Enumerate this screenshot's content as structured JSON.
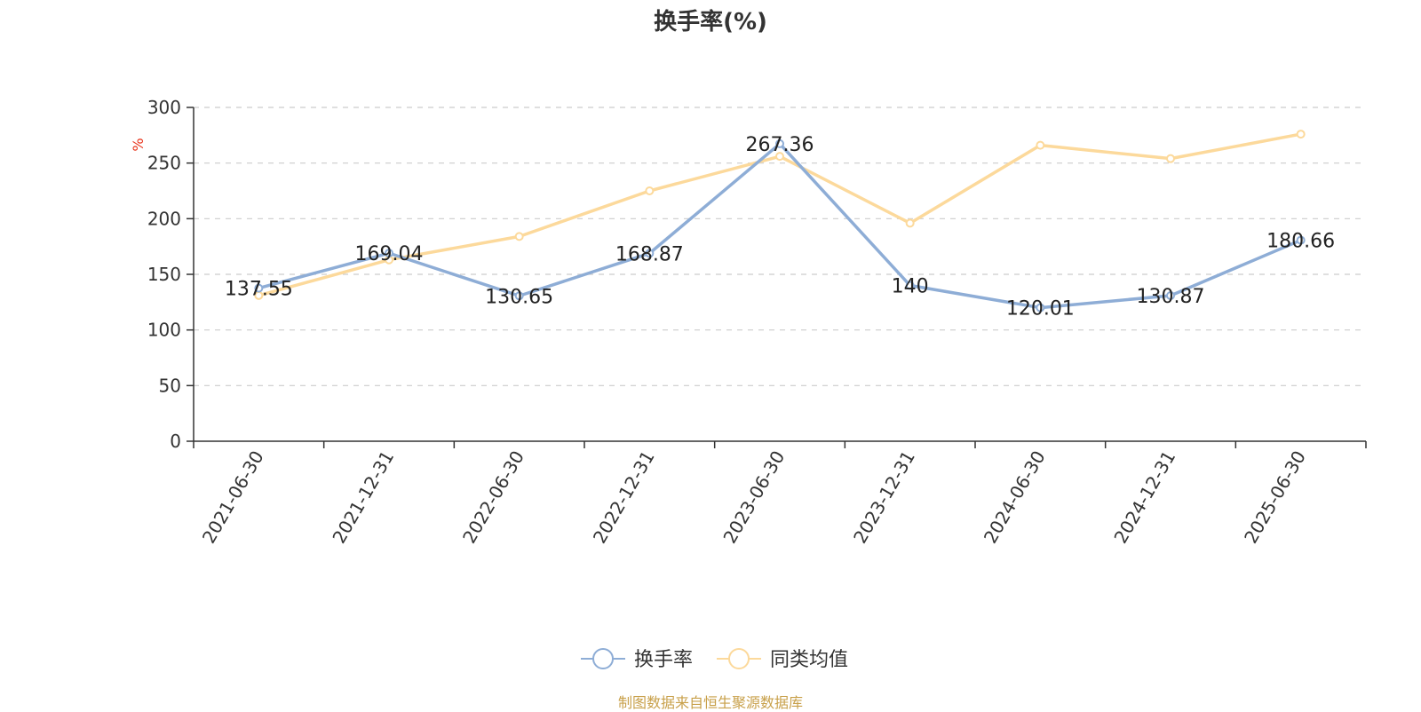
{
  "title": "换手率(%)",
  "source": "制图数据来自恒生聚源数据库",
  "chart_data": {
    "type": "line",
    "title": "换手率(%)",
    "ylabel": "%",
    "ylim": [
      0,
      300
    ],
    "yticks": [
      0,
      50,
      100,
      150,
      200,
      250,
      300
    ],
    "grid": true,
    "legend_position": "bottom",
    "categories": [
      "2021-06-30",
      "2021-12-31",
      "2022-06-30",
      "2022-12-31",
      "2023-06-30",
      "2023-12-31",
      "2024-06-30",
      "2024-12-31",
      "2025-06-30"
    ],
    "series": [
      {
        "name": "换手率",
        "color": "#8eadd6",
        "values": [
          137.55,
          169.04,
          130.65,
          168.87,
          267.36,
          140,
          120.01,
          130.87,
          180.66
        ],
        "labels": [
          "137.55",
          "169.04",
          "130.65",
          "168.87",
          "267.36",
          "140",
          "120.01",
          "130.87",
          "180.66"
        ]
      },
      {
        "name": "同类均值",
        "color": "#fcd99b",
        "values": [
          131,
          163,
          184,
          225,
          256,
          196,
          266,
          254,
          276
        ]
      }
    ]
  }
}
